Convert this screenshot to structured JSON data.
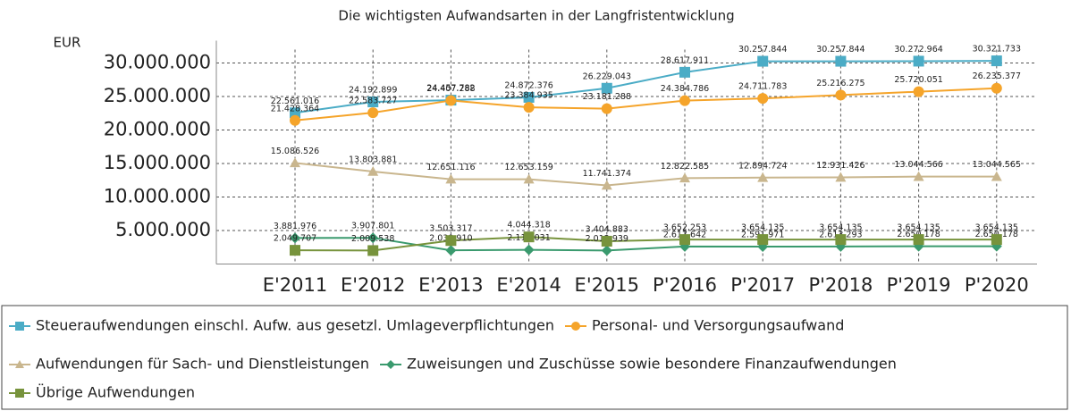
{
  "chart_data": {
    "type": "line",
    "title": "Die wichtigsten Aufwandsarten in der Langfristentwicklung",
    "y_label": "EUR",
    "categories": [
      "E'2011",
      "E'2012",
      "E'2013",
      "E'2014",
      "E'2015",
      "P'2016",
      "P'2017",
      "P'2018",
      "P'2019",
      "P'2020"
    ],
    "series": [
      {
        "name": "Steueraufwendungen einschl. Aufw. aus gesetzl. Umlageverpflichtungen",
        "color": "#4bacc6",
        "marker": "square",
        "values": [
          22561016,
          24192899,
          24457782,
          24872376,
          26229043,
          28617911,
          30257844,
          30257844,
          30272964,
          30321733
        ],
        "value_labels": [
          "22.561.016",
          "24.192.899",
          "24.457.782",
          "24.872.376",
          "26.229.043",
          "28.617.911",
          "30.257.844",
          "30.257.844",
          "30.272.964",
          "30.321.733"
        ]
      },
      {
        "name": "Personal- und Versorgungsaufwand",
        "color": "#f5a42a",
        "marker": "circle",
        "values": [
          21428364,
          22583727,
          24407288,
          23384935,
          23181288,
          24384786,
          24711783,
          25216275,
          25720051,
          26235377
        ],
        "value_labels": [
          "21.428.364",
          "22.583.727",
          "24.407.288",
          "23.384.935",
          "23.181.288",
          "24.384.786",
          "24.711.783",
          "25.216.275",
          "25.720.051",
          "26.235.377"
        ]
      },
      {
        "name": "Aufwendungen für Sach- und Dienstleistungen",
        "color": "#c9b68e",
        "marker": "triangle",
        "values": [
          15086526,
          13803881,
          12651116,
          12653159,
          11741374,
          12822585,
          12894724,
          12931426,
          13044566,
          13044565
        ],
        "value_labels": [
          "15.086.526",
          "13.803.881",
          "12.651.116",
          "12.653.159",
          "11.741.374",
          "12.822.585",
          "12.894.724",
          "12.931.426",
          "13.044.566",
          "13.044.565"
        ]
      },
      {
        "name": "Zuweisungen und Zuschüsse sowie besondere Finanzaufwendungen",
        "color": "#3a9a6e",
        "marker": "diamond",
        "values": [
          3881976,
          3907801,
          2039910,
          2111031,
          2012939,
          2617642,
          2591971,
          2613293,
          2650178,
          2650178
        ],
        "value_labels": [
          "3.881.976",
          "3.907.801",
          "2.039.910",
          "2.111.031",
          "2.012.939",
          "2.617.642",
          "2.591.971",
          "2.613.293",
          "2.650.178",
          "2.650.178"
        ]
      },
      {
        "name": "Übrige Aufwendungen",
        "color": "#77933c",
        "marker": "square",
        "values": [
          2049707,
          2009538,
          3503317,
          4044318,
          3404883,
          3652253,
          3654135,
          3654135,
          3654135,
          3654135
        ],
        "value_labels": [
          "2.049.707",
          "2.009.538",
          "3.503.317",
          "4.044.318",
          "3.404.883",
          "3.652.253",
          "3.654.135",
          "3.654.135",
          "3.654.135",
          "3.654.135"
        ]
      }
    ],
    "ylim": [
      0,
      32000000
    ],
    "yticks": [
      {
        "value": 5000000,
        "label": "5.000.000"
      },
      {
        "value": 10000000,
        "label": "10.000.000"
      },
      {
        "value": 15000000,
        "label": "15.000.000"
      },
      {
        "value": 20000000,
        "label": "20.000.000"
      },
      {
        "value": 25000000,
        "label": "25.000.000"
      },
      {
        "value": 30000000,
        "label": "30.000.000"
      }
    ],
    "grid": true,
    "legend": "bottom"
  }
}
